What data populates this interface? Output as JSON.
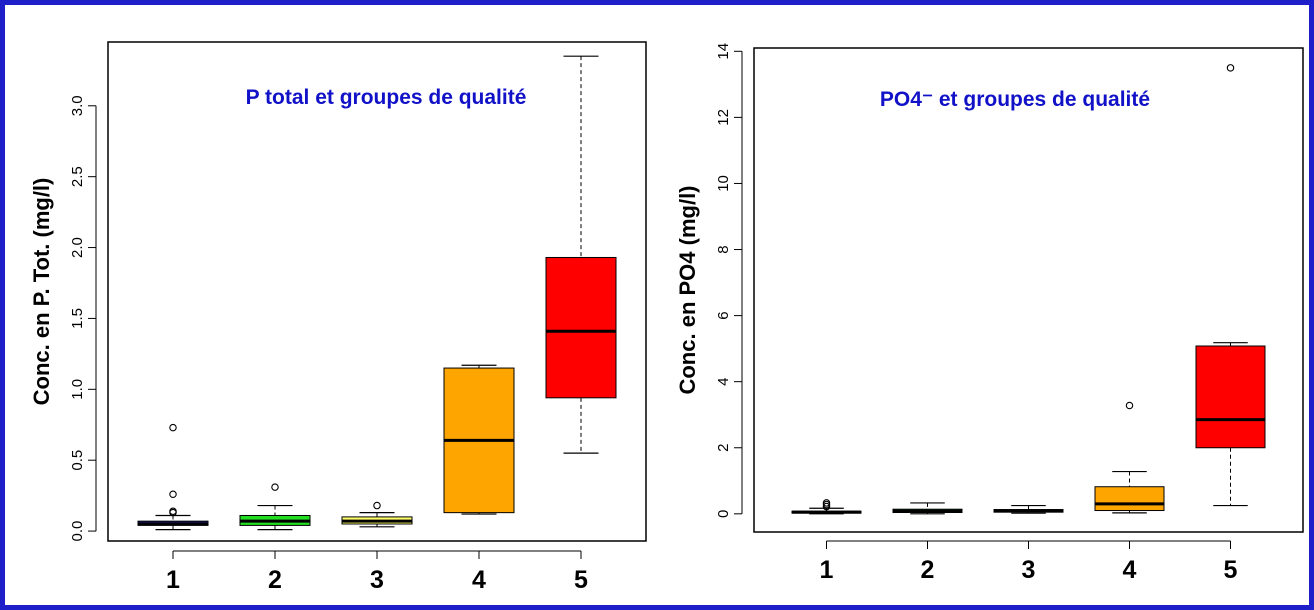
{
  "colors": {
    "border": "#1f1fc9",
    "title": "#1111c8"
  },
  "chart_data": [
    {
      "type": "boxplot",
      "title": "P total et groupes de qualité",
      "xlabel": "",
      "ylabel": "Conc. en P. Tot. (mg/l)",
      "ylim": [
        -0.07,
        3.45
      ],
      "yticks": [
        0.0,
        0.5,
        1.0,
        1.5,
        2.0,
        2.5,
        3.0
      ],
      "ytick_labels": [
        "0.0",
        "0.5",
        "1.0",
        "1.5",
        "2.0",
        "2.5",
        "3.0"
      ],
      "y_tick_label_orientation": "rotated-vertical",
      "categories": [
        "1",
        "2",
        "3",
        "4",
        "5"
      ],
      "boxes": [
        {
          "category": "1",
          "color": "#1a1a7a",
          "whisker_low": 0.01,
          "q1": 0.04,
          "median": 0.05,
          "q3": 0.07,
          "whisker_high": 0.11,
          "outliers": [
            0.13,
            0.14,
            0.26,
            0.73
          ]
        },
        {
          "category": "2",
          "color": "#22dd22",
          "whisker_low": 0.01,
          "q1": 0.04,
          "median": 0.07,
          "q3": 0.11,
          "whisker_high": 0.18,
          "outliers": [
            0.31
          ]
        },
        {
          "category": "3",
          "color": "#ffff66",
          "whisker_low": 0.03,
          "q1": 0.05,
          "median": 0.07,
          "q3": 0.1,
          "whisker_high": 0.13,
          "outliers": [
            0.18
          ]
        },
        {
          "category": "4",
          "color": "#ffa500",
          "whisker_low": 0.12,
          "q1": 0.13,
          "median": 0.64,
          "q3": 1.15,
          "whisker_high": 1.17,
          "outliers": []
        },
        {
          "category": "5",
          "color": "#ff0000",
          "whisker_low": 0.55,
          "q1": 0.94,
          "median": 1.41,
          "q3": 1.93,
          "whisker_high": 3.35,
          "outliers": []
        }
      ],
      "grid": false,
      "legend": "none"
    },
    {
      "type": "boxplot",
      "title": "PO4⁻ et groupes de qualité",
      "xlabel": "",
      "ylabel": "Conc. en PO4 (mg/l)",
      "ylim": [
        -0.55,
        14.1
      ],
      "yticks": [
        0,
        2,
        4,
        6,
        8,
        10,
        12,
        14
      ],
      "ytick_labels": [
        "0",
        "2",
        "4",
        "6",
        "8",
        "10",
        "12",
        "14"
      ],
      "y_tick_label_orientation": "rotated-vertical",
      "categories": [
        "1",
        "2",
        "3",
        "4",
        "5"
      ],
      "boxes": [
        {
          "category": "1",
          "color": "#1a1a7a",
          "whisker_low": 0.0,
          "q1": 0.02,
          "median": 0.05,
          "q3": 0.08,
          "whisker_high": 0.17,
          "outliers": [
            0.22,
            0.28,
            0.33
          ]
        },
        {
          "category": "2",
          "color": "#22dd22",
          "whisker_low": 0.0,
          "q1": 0.04,
          "median": 0.08,
          "q3": 0.14,
          "whisker_high": 0.33,
          "outliers": []
        },
        {
          "category": "3",
          "color": "#ffff66",
          "whisker_low": 0.02,
          "q1": 0.05,
          "median": 0.09,
          "q3": 0.13,
          "whisker_high": 0.25,
          "outliers": []
        },
        {
          "category": "4",
          "color": "#ffa500",
          "whisker_low": 0.03,
          "q1": 0.1,
          "median": 0.3,
          "q3": 0.82,
          "whisker_high": 1.28,
          "outliers": [
            3.28
          ]
        },
        {
          "category": "5",
          "color": "#ff0000",
          "whisker_low": 0.25,
          "q1": 2.0,
          "median": 2.85,
          "q3": 5.08,
          "whisker_high": 5.18,
          "outliers": [
            13.5
          ]
        }
      ],
      "grid": false,
      "legend": "none"
    }
  ]
}
